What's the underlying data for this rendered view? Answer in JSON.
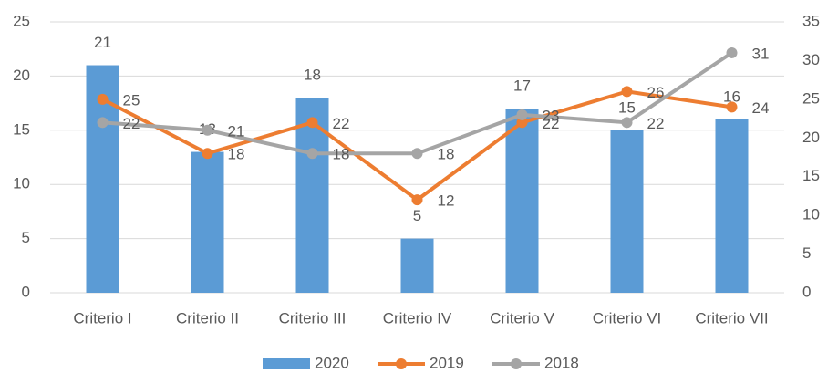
{
  "chart_data": {
    "type": "bar",
    "categories": [
      "Criterio I",
      "Criterio II",
      "Criterio III",
      "Criterio IV",
      "Criterio V",
      "Criterio VI",
      "Criterio VII"
    ],
    "series": [
      {
        "name": "2020",
        "type": "bar",
        "color": "#5b9bd5",
        "values": [
          21,
          13,
          18,
          5,
          17,
          15,
          16
        ]
      },
      {
        "name": "2019",
        "type": "line",
        "axis": "y2",
        "color": "#ed7d31",
        "values": [
          25,
          18,
          22,
          12,
          22,
          26,
          24
        ]
      },
      {
        "name": "2018",
        "type": "line",
        "axis": "y2",
        "color": "#a5a5a5",
        "values": [
          22,
          21,
          18,
          18,
          23,
          22,
          31
        ]
      }
    ],
    "ylim": [
      0,
      25
    ],
    "yticks": [
      0,
      5,
      10,
      15,
      20,
      25
    ],
    "y2lim": [
      0,
      35
    ],
    "y2ticks": [
      0,
      5,
      10,
      15,
      20,
      25,
      30,
      35
    ],
    "grid": true,
    "legend": "bottom"
  }
}
